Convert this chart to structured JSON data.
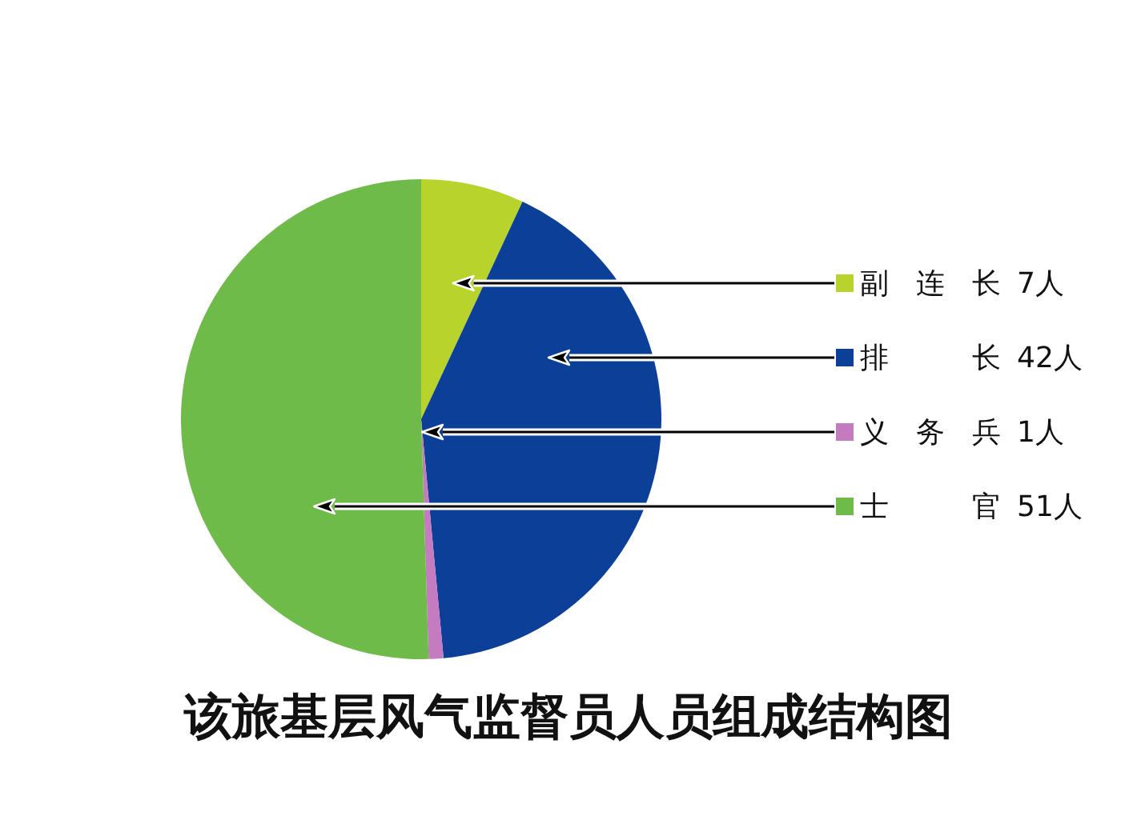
{
  "chart_data": {
    "type": "pie",
    "title": "该旅基层风气监督员人员组成结构图",
    "categories": [
      "副连长 7人",
      "排长 42人",
      "义务兵 1人",
      "士官 51人"
    ],
    "values": [
      7,
      42,
      1,
      51
    ],
    "colors": [
      "#b8d32c",
      "#0c3f98",
      "#c57bbf",
      "#6fbb49"
    ],
    "legend": "right"
  }
}
